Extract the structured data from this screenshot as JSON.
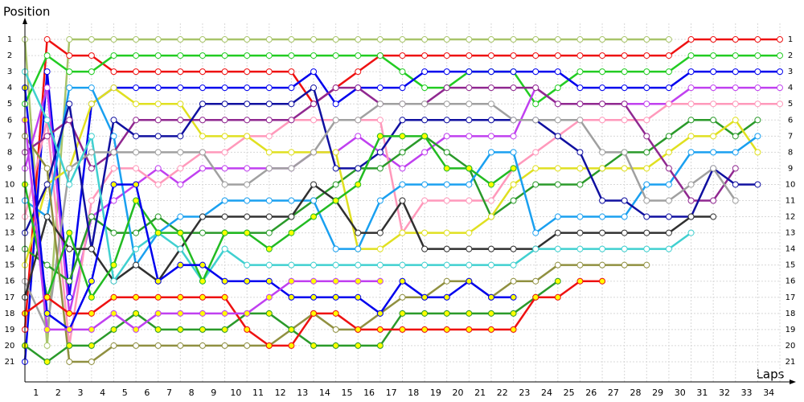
{
  "chart_data": {
    "type": "line",
    "ylabel": "Position",
    "xlabel": "Laps",
    "x": [
      0,
      1,
      2,
      3,
      4,
      5,
      6,
      7,
      8,
      9,
      10,
      11,
      12,
      13,
      14,
      15,
      16,
      17,
      18,
      19,
      20,
      21,
      22,
      23,
      24,
      25,
      26,
      27,
      28,
      29,
      30,
      31,
      32,
      33,
      34
    ],
    "xlim": [
      0,
      34
    ],
    "ylim": [
      22,
      0
    ],
    "xticks": [
      1,
      2,
      3,
      4,
      5,
      6,
      7,
      8,
      9,
      10,
      11,
      12,
      13,
      14,
      15,
      16,
      17,
      18,
      19,
      20,
      21,
      22,
      23,
      24,
      25,
      26,
      27,
      28,
      29,
      30,
      31,
      32,
      33,
      34
    ],
    "yticks": [
      1,
      2,
      3,
      4,
      5,
      6,
      7,
      8,
      9,
      10,
      11,
      12,
      13,
      14,
      15,
      16,
      17,
      18,
      19,
      20,
      21
    ],
    "grid": true,
    "series": [
      {
        "color": "#a8c46a",
        "marker": "#ffffff",
        "values": [
          1,
          20,
          1,
          1,
          1,
          1,
          1,
          1,
          1,
          1,
          1,
          1,
          1,
          1,
          1,
          1,
          1,
          1,
          1,
          1,
          1,
          1,
          1,
          1,
          1,
          1,
          1,
          1,
          1,
          1,
          null,
          null,
          null,
          null,
          null
        ]
      },
      {
        "color": "#ee1111",
        "marker": "#ffffff",
        "values": [
          19,
          1,
          2,
          2,
          3,
          3,
          3,
          3,
          3,
          3,
          3,
          3,
          3,
          5,
          4,
          3,
          2,
          2,
          2,
          2,
          2,
          2,
          2,
          2,
          2,
          2,
          2,
          2,
          2,
          2,
          1,
          1,
          1,
          1,
          1
        ]
      },
      {
        "color": "#22cc22",
        "marker": "#ffffff",
        "values": [
          5,
          2,
          3,
          3,
          2,
          2,
          2,
          2,
          2,
          2,
          2,
          2,
          2,
          2,
          2,
          2,
          2,
          3,
          4,
          4,
          3,
          3,
          3,
          5,
          4,
          3,
          3,
          3,
          3,
          3,
          2,
          2,
          2,
          2,
          2
        ]
      },
      {
        "color": "#0000ee",
        "marker": "#ffffff",
        "values": [
          21,
          3,
          17,
          5,
          4,
          4,
          4,
          4,
          4,
          4,
          4,
          4,
          4,
          3,
          5,
          4,
          4,
          4,
          3,
          3,
          3,
          3,
          3,
          3,
          3,
          4,
          4,
          4,
          4,
          4,
          3,
          3,
          3,
          3,
          3
        ]
      },
      {
        "color": "#c040f0",
        "marker": "#ffffff",
        "values": [
          9,
          4,
          18,
          12,
          11,
          10,
          9,
          10,
          9,
          9,
          9,
          9,
          9,
          8,
          8,
          7,
          8,
          9,
          8,
          7,
          7,
          7,
          7,
          4,
          5,
          5,
          5,
          5,
          5,
          5,
          4,
          4,
          4,
          4,
          4
        ]
      },
      {
        "color": "#ff99bb",
        "marker": "#ffffff",
        "values": [
          12,
          6,
          20,
          11,
          9,
          9,
          10,
          9,
          8,
          8,
          7,
          7,
          6,
          6,
          6,
          6,
          6,
          13,
          11,
          11,
          11,
          11,
          9,
          8,
          7,
          6,
          6,
          6,
          6,
          5,
          5,
          5,
          5,
          5,
          5
        ]
      },
      {
        "color": "#2a9a2a",
        "marker": "#ffffff",
        "values": [
          14,
          15,
          16,
          12,
          13,
          13,
          12,
          13,
          13,
          13,
          13,
          13,
          12,
          11,
          10,
          9,
          9,
          8,
          7,
          8,
          9,
          12,
          11,
          10,
          10,
          10,
          9,
          8,
          8,
          7,
          6,
          6,
          7,
          6,
          null
        ]
      },
      {
        "color": "#e0e020",
        "marker": "#ffffff",
        "values": [
          15,
          10,
          9,
          5,
          4,
          5,
          5,
          5,
          7,
          7,
          7,
          8,
          8,
          8,
          8,
          14,
          14,
          13,
          13,
          13,
          13,
          12,
          10,
          9,
          9,
          9,
          9,
          9,
          9,
          8,
          7,
          7,
          6,
          8,
          null
        ]
      },
      {
        "color": "#1aa0f0",
        "marker": "#ffffff",
        "values": [
          11,
          12,
          4,
          4,
          7,
          15,
          13,
          12,
          12,
          11,
          11,
          11,
          11,
          11,
          14,
          14,
          11,
          10,
          10,
          10,
          10,
          8,
          8,
          13,
          12,
          12,
          12,
          12,
          10,
          10,
          8,
          8,
          8,
          7,
          null
        ]
      },
      {
        "color": "#902890",
        "marker": "#ffffff",
        "values": [
          8,
          7,
          6,
          9,
          8,
          6,
          6,
          6,
          6,
          6,
          6,
          6,
          6,
          5,
          4,
          4,
          5,
          5,
          5,
          4,
          4,
          4,
          4,
          4,
          5,
          5,
          5,
          5,
          7,
          9,
          11,
          11,
          9,
          null,
          null
        ]
      },
      {
        "color": "#1010a0",
        "marker": "#ffffff",
        "values": [
          13,
          10,
          5,
          14,
          6,
          7,
          7,
          7,
          5,
          5,
          5,
          5,
          5,
          4,
          9,
          9,
          8,
          6,
          6,
          6,
          6,
          6,
          6,
          6,
          7,
          8,
          11,
          11,
          12,
          12,
          12,
          9,
          10,
          10,
          null
        ]
      },
      {
        "color": "#a0a0a0",
        "marker": "#ffffff",
        "values": [
          16,
          19,
          9,
          8,
          8,
          8,
          8,
          8,
          8,
          10,
          10,
          9,
          9,
          8,
          6,
          6,
          5,
          5,
          5,
          5,
          5,
          5,
          6,
          6,
          6,
          6,
          8,
          8,
          11,
          11,
          10,
          9,
          11,
          null,
          null
        ]
      },
      {
        "color": "#303030",
        "marker": "#ffffff",
        "values": [
          17,
          12,
          14,
          14,
          16,
          15,
          16,
          14,
          12,
          12,
          12,
          12,
          12,
          10,
          11,
          13,
          13,
          11,
          14,
          14,
          14,
          14,
          14,
          14,
          13,
          13,
          13,
          13,
          13,
          13,
          12,
          12,
          null,
          null,
          null
        ]
      },
      {
        "color": "#40d0d0",
        "marker": "#ffffff",
        "values": [
          3,
          6,
          10,
          7,
          16,
          14,
          13,
          14,
          16,
          14,
          15,
          15,
          15,
          15,
          15,
          15,
          15,
          15,
          15,
          15,
          15,
          15,
          15,
          14,
          14,
          14,
          14,
          14,
          14,
          14,
          13,
          null,
          null,
          null,
          null
        ]
      },
      {
        "color": "#909040",
        "marker": "#ffffff",
        "values": [
          7,
          9,
          21,
          21,
          20,
          20,
          20,
          20,
          20,
          20,
          20,
          20,
          19,
          18,
          19,
          19,
          18,
          17,
          17,
          16,
          16,
          17,
          16,
          16,
          15,
          15,
          15,
          15,
          15,
          null,
          null,
          null,
          null,
          null,
          null
        ]
      },
      {
        "color": "#22bb22",
        "marker": "#ffff00",
        "values": [
          10,
          17,
          13,
          17,
          15,
          11,
          13,
          13,
          16,
          13,
          13,
          14,
          13,
          12,
          11,
          10,
          7,
          7,
          7,
          9,
          9,
          10,
          9,
          null,
          null,
          null,
          null,
          null,
          null,
          null,
          null,
          null,
          null,
          null,
          null
        ]
      },
      {
        "color": "#2a9a2a",
        "marker": "#ffff00",
        "values": [
          20,
          21,
          20,
          20,
          19,
          18,
          19,
          19,
          19,
          19,
          18,
          18,
          19,
          20,
          20,
          20,
          20,
          18,
          18,
          18,
          18,
          18,
          18,
          17,
          16,
          null,
          null,
          null,
          null,
          null,
          null,
          null,
          null,
          null,
          null
        ]
      },
      {
        "color": "#ee1111",
        "marker": "#ffff00",
        "values": [
          18,
          17,
          18,
          18,
          17,
          17,
          17,
          17,
          17,
          17,
          19,
          20,
          20,
          18,
          18,
          19,
          19,
          19,
          19,
          19,
          19,
          19,
          19,
          17,
          17,
          16,
          16,
          null,
          null,
          null,
          null,
          null,
          null,
          null,
          null
        ]
      },
      {
        "color": "#0000ee",
        "marker": "#ffff00",
        "values": [
          4,
          18,
          19,
          16,
          10,
          10,
          16,
          15,
          15,
          16,
          16,
          16,
          17,
          17,
          17,
          17,
          18,
          16,
          17,
          17,
          16,
          17,
          17,
          null,
          null,
          null,
          null,
          null,
          null,
          null,
          null,
          null,
          null,
          null,
          null
        ]
      },
      {
        "color": "#c040f0",
        "marker": "#ffff00",
        "values": [
          6,
          19,
          19,
          19,
          18,
          19,
          18,
          18,
          18,
          18,
          18,
          17,
          16,
          16,
          16,
          16,
          16,
          null,
          null,
          null,
          null,
          null,
          null,
          null,
          null,
          null,
          null,
          null,
          null,
          null,
          null,
          null,
          null,
          null,
          null
        ]
      }
    ]
  }
}
